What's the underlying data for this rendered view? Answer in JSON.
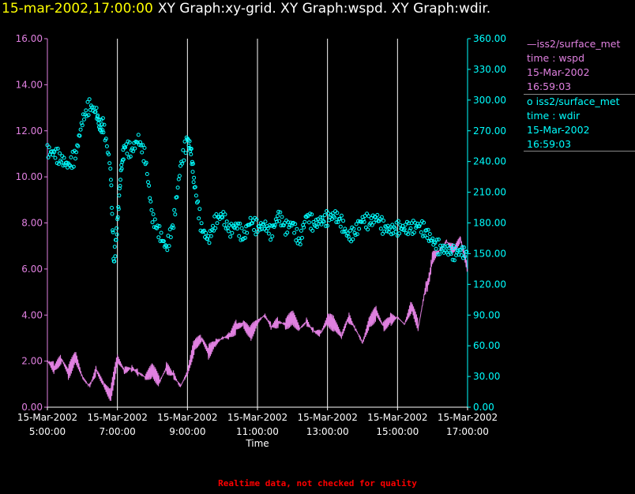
{
  "header": {
    "timestamp": "15-mar-2002,17:00:00",
    "graphs": "XY Graph:xy-grid.  XY Graph:wspd.  XY Graph:wdir."
  },
  "colors": {
    "background": "#000000",
    "wspd": "#e080e0",
    "wdir": "#00ffff",
    "grid": "#ffffff",
    "timestamp": "#ffff00",
    "note": "#ff0000"
  },
  "legend": [
    {
      "symbol": "line",
      "name": "iss2/surface_met",
      "var": "time : wspd",
      "date": "15-Mar-2002",
      "time": "16:59:03",
      "color": "#e080e0"
    },
    {
      "symbol": "circle",
      "name": "iss2/surface_met",
      "var": "time : wdir",
      "date": "15-Mar-2002",
      "time": "16:59:03",
      "color": "#00ffff"
    }
  ],
  "note": "Realtime data, not checked for quality",
  "chart_data": {
    "type": "line",
    "xlabel": "Time",
    "x_range": [
      "15-Mar-2002 5:00:00",
      "15-Mar-2002 17:00:00"
    ],
    "x_ticks": [
      {
        "date": "15-Mar-2002",
        "time": "5:00:00"
      },
      {
        "date": "15-Mar-2002",
        "time": "7:00:00"
      },
      {
        "date": "15-Mar-2002",
        "time": "9:00:00"
      },
      {
        "date": "15-Mar-2002",
        "time": "11:00:00"
      },
      {
        "date": "15-Mar-2002",
        "time": "13:00:00"
      },
      {
        "date": "15-Mar-2002",
        "time": "15:00:00"
      },
      {
        "date": "15-Mar-2002",
        "time": "17:00:00"
      }
    ],
    "x_grid_hours": [
      7,
      9,
      11,
      13,
      15
    ],
    "y_left": {
      "min": 0,
      "max": 16,
      "ticks": [
        "0.00",
        "2.00",
        "4.00",
        "6.00",
        "8.00",
        "10.00",
        "12.00",
        "14.00",
        "16.00"
      ]
    },
    "y_right": {
      "min": 0,
      "max": 360,
      "ticks": [
        "0.00",
        "30.00",
        "60.00",
        "90.00",
        "120.00",
        "150.00",
        "180.00",
        "210.00",
        "240.00",
        "270.00",
        "300.00",
        "330.00",
        "360.00"
      ]
    },
    "series": [
      {
        "name": "iss2/surface_met",
        "variable": "wspd",
        "axis": "left",
        "style": "line",
        "hours": [
          5.0,
          5.2,
          5.4,
          5.6,
          5.8,
          6.0,
          6.2,
          6.4,
          6.6,
          6.8,
          7.0,
          7.2,
          7.4,
          7.6,
          7.8,
          8.0,
          8.2,
          8.4,
          8.6,
          8.8,
          9.0,
          9.2,
          9.4,
          9.6,
          9.8,
          10.0,
          10.2,
          10.4,
          10.6,
          10.8,
          11.0,
          11.2,
          11.4,
          11.6,
          11.8,
          12.0,
          12.2,
          12.4,
          12.6,
          12.8,
          13.0,
          13.2,
          13.4,
          13.6,
          13.8,
          14.0,
          14.2,
          14.4,
          14.6,
          14.8,
          15.0,
          15.2,
          15.4,
          15.6,
          15.8,
          15.9,
          16.0,
          16.2,
          16.4,
          16.6,
          16.8,
          17.0
        ],
        "values": [
          2.0,
          1.7,
          2.1,
          1.5,
          2.2,
          1.3,
          0.9,
          1.6,
          1.0,
          0.5,
          2.1,
          1.6,
          1.7,
          1.5,
          1.3,
          1.6,
          1.1,
          1.7,
          1.4,
          0.9,
          1.5,
          2.7,
          3.0,
          2.4,
          2.8,
          3.0,
          3.1,
          3.5,
          3.6,
          3.2,
          3.7,
          4.0,
          3.5,
          3.7,
          3.6,
          3.9,
          3.4,
          3.7,
          3.3,
          3.2,
          3.8,
          3.6,
          3.1,
          3.9,
          3.4,
          2.8,
          3.7,
          4.1,
          3.5,
          3.8,
          3.9,
          3.6,
          4.4,
          3.5,
          5.2,
          5.5,
          6.5,
          6.8,
          7.2,
          6.8,
          7.3,
          6.0
        ]
      },
      {
        "name": "iss2/surface_met",
        "variable": "wdir",
        "axis": "right",
        "style": "circles",
        "hours": [
          5.0,
          5.2,
          5.4,
          5.6,
          5.8,
          6.0,
          6.2,
          6.4,
          6.5,
          6.6,
          6.8,
          6.9,
          7.0,
          7.1,
          7.2,
          7.4,
          7.6,
          7.8,
          8.0,
          8.2,
          8.4,
          8.6,
          8.8,
          9.0,
          9.1,
          9.2,
          9.4,
          9.6,
          9.8,
          10.0,
          10.2,
          10.4,
          10.6,
          10.8,
          11.0,
          11.2,
          11.4,
          11.6,
          11.8,
          12.0,
          12.2,
          12.4,
          12.6,
          12.8,
          13.0,
          13.2,
          13.4,
          13.6,
          13.8,
          14.0,
          14.2,
          14.4,
          14.6,
          14.8,
          15.0,
          15.2,
          15.4,
          15.6,
          15.8,
          16.0,
          16.2,
          16.4,
          16.6,
          16.8,
          17.0
        ],
        "values": [
          250,
          248,
          242,
          236,
          245,
          280,
          295,
          288,
          273,
          275,
          235,
          140,
          180,
          230,
          255,
          250,
          262,
          243,
          185,
          170,
          155,
          180,
          235,
          262,
          250,
          218,
          175,
          163,
          182,
          188,
          172,
          178,
          166,
          182,
          175,
          178,
          170,
          188,
          175,
          180,
          160,
          188,
          178,
          182,
          184,
          188,
          180,
          166,
          172,
          184,
          180,
          186,
          176,
          173,
          175,
          175,
          175,
          178,
          172,
          162,
          155,
          154,
          150,
          152,
          150
        ]
      }
    ]
  }
}
